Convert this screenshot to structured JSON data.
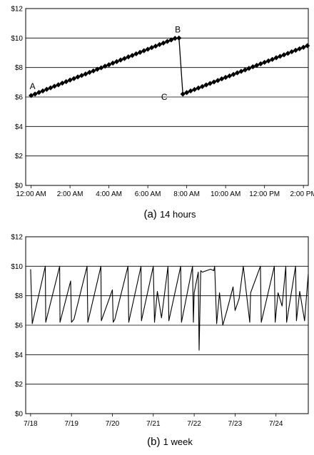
{
  "chart_data": [
    {
      "type": "line",
      "caption": {
        "letter": "(a)",
        "text": "14 hours"
      },
      "y_ticks": [
        "$0",
        "$2",
        "$4",
        "$6",
        "$8",
        "$10",
        "$12"
      ],
      "ylim": [
        0,
        12
      ],
      "x_ticks": [
        "12:00 AM",
        "2:00 AM",
        "4:00 AM",
        "6:00 AM",
        "8:00 AM",
        "10:00 AM",
        "12:00 PM",
        "2:00 PM"
      ],
      "x_tick_hours": [
        0,
        2,
        4,
        6,
        8,
        10,
        12,
        14
      ],
      "xlim_hours": [
        -0.28,
        14.25
      ],
      "grid": true,
      "markers": "diamond",
      "series": [
        {
          "x_hours": [
            0.0,
            0.2,
            0.4,
            0.6,
            0.8,
            1.0,
            1.2,
            1.4,
            1.6,
            1.8,
            2.0,
            2.2,
            2.4,
            2.6,
            2.8,
            3.0,
            3.2,
            3.4,
            3.6,
            3.8,
            4.0,
            4.2,
            4.4,
            4.6,
            4.8,
            5.0,
            5.2,
            5.4,
            5.6,
            5.8,
            6.0,
            6.2,
            6.4,
            6.6,
            6.8,
            7.0,
            7.2,
            7.4,
            7.6,
            7.8,
            8.0,
            8.2,
            8.4,
            8.6,
            8.8,
            9.0,
            9.2,
            9.4,
            9.6,
            9.8,
            10.0,
            10.2,
            10.4,
            10.6,
            10.8,
            11.0,
            11.2,
            11.4,
            11.6,
            11.8,
            12.0,
            12.2,
            12.4,
            12.6,
            12.8,
            13.0,
            13.2,
            13.4,
            13.6,
            13.8,
            14.0,
            14.2
          ],
          "y": [
            6.1,
            6.2,
            6.31,
            6.41,
            6.52,
            6.62,
            6.73,
            6.83,
            6.94,
            7.04,
            7.15,
            7.25,
            7.36,
            7.46,
            7.56,
            7.67,
            7.77,
            7.88,
            7.98,
            8.09,
            8.19,
            8.3,
            8.4,
            8.51,
            8.61,
            8.72,
            8.82,
            8.93,
            9.03,
            9.14,
            9.24,
            9.35,
            9.45,
            9.56,
            9.66,
            9.77,
            9.87,
            9.98,
            10.0,
            6.2,
            6.3,
            6.41,
            6.51,
            6.61,
            6.71,
            6.82,
            6.92,
            7.02,
            7.12,
            7.23,
            7.33,
            7.43,
            7.53,
            7.64,
            7.74,
            7.84,
            7.94,
            8.05,
            8.15,
            8.25,
            8.35,
            8.45,
            8.55,
            8.66,
            8.76,
            8.86,
            8.96,
            9.07,
            9.17,
            9.27,
            9.37,
            9.48
          ]
        }
      ],
      "annotations": [
        {
          "label": "A",
          "x_hours": 0.0,
          "y": 6.1
        },
        {
          "label": "B",
          "x_hours": 7.1,
          "y": 10.0
        },
        {
          "label": "C",
          "x_hours": 7.2,
          "y": 6.2
        }
      ]
    },
    {
      "type": "line",
      "caption": {
        "letter": "(b)",
        "text": "1 week"
      },
      "y_ticks": [
        "$0",
        "$2",
        "$4",
        "$6",
        "$8",
        "$10",
        "$12"
      ],
      "ylim": [
        0,
        12
      ],
      "x_ticks": [
        "7/18",
        "7/19",
        "7/20",
        "7/21",
        "7/22",
        "7/23",
        "7/24"
      ],
      "x_tick_days": [
        0,
        1,
        2,
        3,
        4,
        5,
        6
      ],
      "xlim_days": [
        -0.12,
        6.79
      ],
      "grid": true,
      "markers": "none",
      "series": [
        {
          "x_days": [
            0.0,
            0.04,
            0.36,
            0.37,
            0.71,
            0.72,
            0.98,
            1.0,
            1.06,
            1.38,
            1.4,
            1.72,
            1.73,
            2.0,
            2.02,
            2.06,
            2.38,
            2.4,
            2.7,
            2.71,
            3.0,
            3.03,
            3.1,
            3.2,
            3.36,
            3.38,
            3.67,
            3.69,
            3.96,
            3.98,
            4.0,
            4.1,
            4.12,
            4.16,
            4.2,
            4.3,
            4.4,
            4.48,
            4.5,
            4.55,
            4.62,
            4.7,
            4.8,
            4.95,
            5.0,
            5.1,
            5.2,
            5.36,
            5.38,
            5.62,
            5.64,
            5.96,
            5.98,
            6.05,
            6.15,
            6.24,
            6.26,
            6.48,
            6.5,
            6.58,
            6.7,
            6.79
          ],
          "y": [
            9.8,
            6.1,
            10.0,
            6.2,
            10.0,
            6.2,
            9.0,
            6.2,
            6.4,
            10.0,
            6.2,
            10.0,
            6.3,
            8.4,
            6.2,
            6.4,
            10.0,
            6.2,
            10.0,
            6.3,
            10.0,
            6.2,
            8.3,
            6.5,
            10.0,
            6.3,
            10.0,
            6.2,
            10.0,
            6.2,
            8.2,
            9.6,
            4.3,
            9.7,
            9.6,
            9.7,
            9.8,
            9.7,
            10.0,
            6.1,
            8.2,
            6.0,
            7.0,
            8.6,
            7.0,
            7.8,
            10.0,
            6.2,
            8.2,
            10.0,
            6.2,
            10.0,
            6.2,
            8.2,
            7.3,
            10.0,
            6.2,
            10.0,
            6.3,
            8.3,
            6.3,
            9.5
          ]
        }
      ]
    }
  ]
}
